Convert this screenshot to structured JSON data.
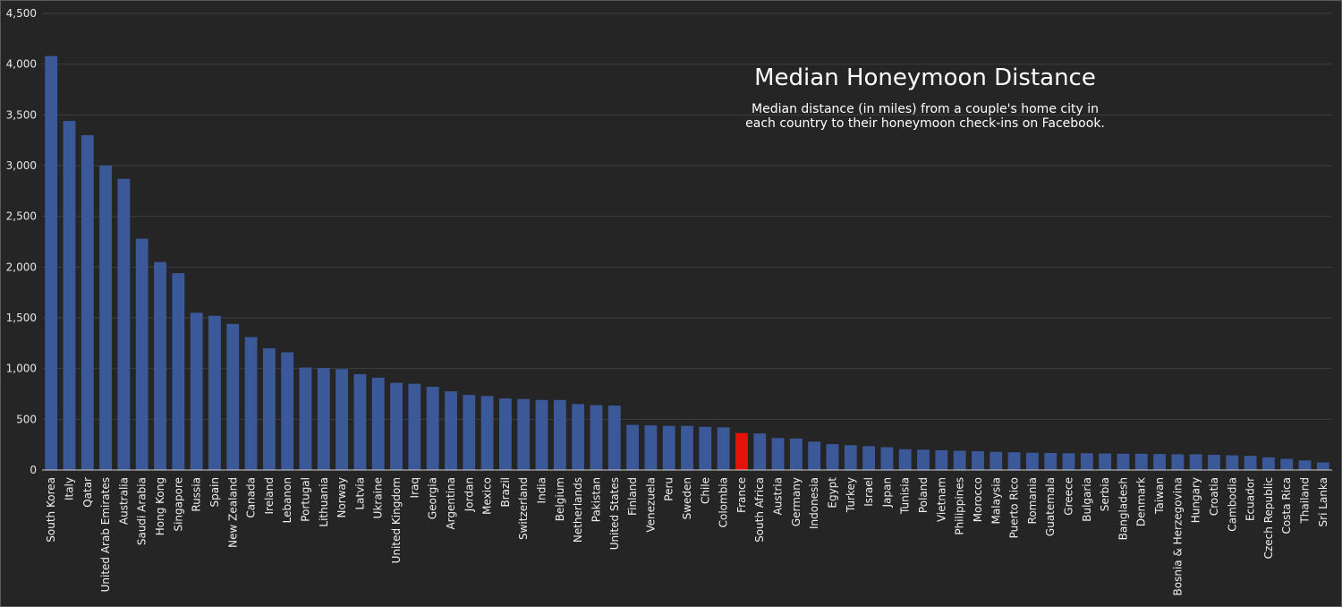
{
  "chart_data": {
    "type": "bar",
    "title": "Median Honeymoon Distance",
    "subtitle_lines": [
      "Median distance (in miles) from a couple's home city in",
      "each country to their honeymoon check-ins on Facebook."
    ],
    "xlabel": "",
    "ylabel": "",
    "ylim": [
      0,
      4500
    ],
    "yticks": [
      0,
      500,
      1000,
      1500,
      2000,
      2500,
      3000,
      3500,
      4000,
      4500
    ],
    "ytick_labels": [
      "0",
      "500",
      "1,000",
      "1,500",
      "2,000",
      "2,500",
      "3,000",
      "3,500",
      "4,000",
      "4,500"
    ],
    "grid": true,
    "legend": "none",
    "bar_color": "#3b5998",
    "highlight_color": "#e3120b",
    "highlight_category": "France",
    "categories": [
      "South Korea",
      "Italy",
      "Qatar",
      "United Arab Emirates",
      "Australia",
      "Saudi Arabia",
      "Hong Kong",
      "Singapore",
      "Russia",
      "Spain",
      "New Zealand",
      "Canada",
      "Ireland",
      "Lebanon",
      "Portugal",
      "Lithuania",
      "Norway",
      "Latvia",
      "Ukraine",
      "United Kingdom",
      "Iraq",
      "Georgia",
      "Argentina",
      "Jordan",
      "Mexico",
      "Brazil",
      "Switzerland",
      "India",
      "Belgium",
      "Netherlands",
      "Pakistan",
      "United States",
      "Finland",
      "Venezuela",
      "Peru",
      "Sweden",
      "Chile",
      "Colombia",
      "France",
      "South Africa",
      "Austria",
      "Germany",
      "Indonesia",
      "Egypt",
      "Turkey",
      "Israel",
      "Japan",
      "Tunisia",
      "Poland",
      "Vietnam",
      "Philippines",
      "Morocco",
      "Malaysia",
      "Puerto Rico",
      "Romania",
      "Guatemala",
      "Greece",
      "Bulgaria",
      "Serbia",
      "Bangladesh",
      "Denmark",
      "Taiwan",
      "Bosnia & Herzegovina",
      "Hungary",
      "Croatia",
      "Cambodia",
      "Ecuador",
      "Czech Republic",
      "Costa Rica",
      "Thailand",
      "Sri Lanka"
    ],
    "values": [
      4080,
      3440,
      3300,
      3000,
      2870,
      2280,
      2050,
      1940,
      1550,
      1520,
      1440,
      1310,
      1200,
      1160,
      1010,
      1005,
      995,
      945,
      910,
      860,
      850,
      820,
      775,
      740,
      730,
      705,
      700,
      690,
      690,
      650,
      640,
      635,
      445,
      440,
      435,
      435,
      425,
      420,
      365,
      360,
      315,
      310,
      280,
      255,
      245,
      235,
      225,
      205,
      200,
      195,
      190,
      185,
      180,
      175,
      170,
      168,
      165,
      165,
      163,
      160,
      160,
      158,
      155,
      155,
      150,
      145,
      140,
      125,
      110,
      95,
      75
    ]
  }
}
